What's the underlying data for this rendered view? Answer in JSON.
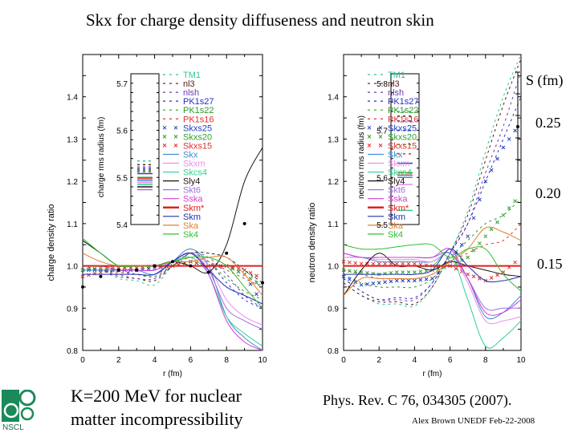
{
  "slide": {
    "title": "Skx for charge density diffuseness and neutron skin",
    "note_line1": "K=200 MeV for nuclear",
    "note_line2": "matter incompressibility",
    "reference": "Phys. Rev. C 76, 034305 (2007).",
    "author": "Alex Brown UNEDF Feb-22-2008",
    "logo_text": "NSCL",
    "skin_scale": {
      "label": "S (fm)",
      "ticks": [
        "0.25",
        "0.20",
        "0.15"
      ]
    }
  },
  "chart_data": [
    {
      "type": "line",
      "xlabel": "r (fm)",
      "ylabel": "charge density ratio",
      "xlim": [
        0,
        10
      ],
      "ylim": [
        0.8,
        1.5
      ],
      "xticks": [
        "0",
        "2",
        "4",
        "6",
        "8",
        "10"
      ],
      "yticks": [
        "0.8",
        "0.9",
        "1.0",
        "1.1",
        "1.2",
        "1.3",
        "1.4"
      ],
      "x": [
        0,
        1,
        2,
        3,
        4,
        5,
        6,
        7,
        8,
        9,
        10
      ],
      "legend_placement": "top-right",
      "inset": {
        "ylabel": "charge rms radius (fm)",
        "yticks": [
          "5.4",
          "5.5",
          "5.6",
          "5.7"
        ],
        "ylim": [
          5.4,
          5.72
        ],
        "values": [
          5.535,
          5.527,
          5.522,
          5.518,
          5.515,
          5.512,
          5.508,
          5.5,
          5.497,
          5.493,
          5.489,
          5.485,
          5.48,
          5.474
        ]
      },
      "series": [
        {
          "name": "TM1",
          "color": "#2ec4a0",
          "style": "dashed",
          "values": [
            0.99,
            0.99,
            0.97,
            0.965,
            0.955,
            1.0,
            1.03,
            1.03,
            1.02,
            0.99,
            0.95
          ]
        },
        {
          "name": "nl3",
          "color": "#5a1a10",
          "style": "dashed",
          "values": [
            0.99,
            0.99,
            0.975,
            0.97,
            0.965,
            1.0,
            1.03,
            1.03,
            1.02,
            0.99,
            0.96
          ]
        },
        {
          "name": "nlsh",
          "color": "#6a3ab0",
          "style": "dashed",
          "values": [
            1.0,
            0.99,
            0.98,
            0.97,
            0.97,
            1.0,
            1.03,
            1.02,
            0.98,
            0.93,
            0.9
          ]
        },
        {
          "name": "PK1s27",
          "color": "#2a2ad0",
          "style": "dashed",
          "values": [
            1.0,
            0.99,
            0.99,
            0.98,
            0.975,
            1.0,
            1.03,
            1.01,
            0.96,
            0.92,
            0.9
          ]
        },
        {
          "name": "PK1s22",
          "color": "#2a9a2a",
          "style": "dashed",
          "values": [
            1.0,
            0.99,
            0.985,
            0.98,
            0.975,
            1.0,
            1.03,
            1.01,
            0.97,
            0.94,
            0.92
          ]
        },
        {
          "name": "PK1s16",
          "color": "#e03030",
          "style": "dashed",
          "values": [
            1.0,
            0.99,
            0.985,
            0.98,
            0.98,
            1.0,
            1.02,
            1.01,
            0.99,
            0.97,
            0.95
          ]
        },
        {
          "name": "Skxs25",
          "color": "#2040c0",
          "style": "cross",
          "values": [
            0.99,
            0.99,
            0.99,
            0.99,
            0.995,
            1.0,
            1.01,
            1.0,
            1.0,
            0.98,
            0.91
          ]
        },
        {
          "name": "Skxs20",
          "color": "#30a030",
          "style": "cross",
          "values": [
            0.99,
            0.995,
            0.995,
            0.995,
            1.0,
            1.0,
            1.01,
            1.0,
            1.0,
            0.98,
            0.95
          ]
        },
        {
          "name": "Skxs15",
          "color": "#e03030",
          "style": "cross",
          "values": [
            0.975,
            0.985,
            0.995,
            0.995,
            1.0,
            1.0,
            1.01,
            1.0,
            1.0,
            0.99,
            0.97
          ]
        },
        {
          "name": "Skx",
          "color": "#3a8ad8",
          "style": "solid",
          "values": [
            0.99,
            0.99,
            0.99,
            0.99,
            0.98,
            1.01,
            1.04,
            1.0,
            0.88,
            0.83,
            0.8
          ]
        },
        {
          "name": "Skxm",
          "color": "#e890e8",
          "style": "solid",
          "values": [
            1.0,
            1.0,
            0.99,
            0.99,
            0.99,
            1.01,
            1.03,
            1.0,
            0.92,
            0.88,
            0.86
          ]
        },
        {
          "name": "Skcs4",
          "color": "#30d090",
          "style": "solid",
          "values": [
            1.06,
            1.03,
            1.0,
            1.0,
            1.0,
            1.01,
            1.02,
            0.98,
            0.88,
            0.84,
            0.81
          ]
        },
        {
          "name": "Sly4",
          "color": "#201010",
          "style": "solid",
          "values": [
            1.06,
            1.03,
            1.0,
            1.0,
            1.0,
            1.01,
            1.0,
            0.985,
            1.05,
            1.2,
            1.28
          ]
        },
        {
          "name": "Skt6",
          "color": "#a070e0",
          "style": "solid",
          "values": [
            1.0,
            1.0,
            0.99,
            0.99,
            0.99,
            1.01,
            1.03,
            0.99,
            0.9,
            0.87,
            0.85
          ]
        },
        {
          "name": "Sska",
          "color": "#d040d0",
          "style": "solid",
          "values": [
            1.0,
            1.0,
            0.99,
            0.99,
            0.99,
            1.01,
            1.03,
            0.98,
            0.87,
            0.82,
            0.79
          ]
        },
        {
          "name": "Skm*",
          "color": "#e02020",
          "style": "thick",
          "values": [
            1.0,
            1.0,
            1.0,
            1.0,
            1.0,
            1.0,
            1.0,
            1.0,
            1.0,
            1.0,
            1.0
          ]
        },
        {
          "name": "Skm",
          "color": "#2030b0",
          "style": "solid",
          "values": [
            0.98,
            0.98,
            0.98,
            0.98,
            0.98,
            1.01,
            1.03,
            0.99,
            0.95,
            0.93,
            0.91
          ]
        },
        {
          "name": "Ska",
          "color": "#e08030",
          "style": "solid",
          "values": [
            1.03,
            1.01,
            1.0,
            1.0,
            1.0,
            1.01,
            1.01,
            1.02,
            1.02,
            0.98,
            0.93
          ]
        },
        {
          "name": "Sk4",
          "color": "#30c030",
          "style": "solid",
          "values": [
            1.065,
            1.03,
            1.0,
            1.0,
            1.0,
            1.01,
            1.02,
            1.02,
            1.0,
            0.95,
            0.9
          ]
        },
        {
          "color": "#000000",
          "style": "dots",
          "values": [
            0.95,
            0.975,
            0.99,
            0.99,
            1.0,
            1.01,
            1.0,
            0.985,
            1.03,
            1.1,
            0.96
          ]
        }
      ]
    },
    {
      "type": "line",
      "xlabel": "r (fm)",
      "ylabel": "neutron density ratio",
      "xlim": [
        0,
        10
      ],
      "ylim": [
        0.8,
        1.5
      ],
      "xticks": [
        "0",
        "2",
        "4",
        "6",
        "8",
        "10"
      ],
      "yticks": [
        "0.8",
        "0.9",
        "1.0",
        "1.1",
        "1.2",
        "1.3",
        "1.4"
      ],
      "x": [
        0,
        1,
        2,
        3,
        4,
        5,
        6,
        7,
        8,
        9,
        10
      ],
      "legend_placement": "top-right",
      "inset": {
        "ylabel": "neutron rms radius (fm)",
        "yticks": [
          "5.5",
          "5.6",
          "5.7",
          "5.8"
        ],
        "ylim": [
          5.5,
          5.82
        ],
        "values": [
          5.74,
          5.73,
          5.72,
          5.7,
          5.67,
          5.65,
          5.63,
          5.61,
          5.605,
          5.6,
          5.585,
          5.53
        ]
      },
      "series": [
        {
          "name": "TM1",
          "color": "#2ec4a0",
          "style": "dashed",
          "values": [
            0.96,
            0.93,
            0.91,
            0.91,
            0.905,
            0.95,
            1.03,
            1.13,
            1.27,
            1.4,
            1.5
          ]
        },
        {
          "name": "nl3",
          "color": "#5a1a10",
          "style": "dashed",
          "values": [
            0.96,
            0.93,
            0.915,
            0.915,
            0.91,
            0.95,
            1.03,
            1.12,
            1.25,
            1.38,
            1.49
          ]
        },
        {
          "name": "nlsh",
          "color": "#6a3ab0",
          "style": "dashed",
          "values": [
            0.97,
            0.94,
            0.92,
            0.92,
            0.92,
            0.96,
            1.03,
            1.1,
            1.22,
            1.33,
            1.46
          ]
        },
        {
          "name": "PK1s27",
          "color": "#2a2ad0",
          "style": "dashed",
          "values": [
            0.97,
            0.94,
            0.92,
            0.925,
            0.925,
            0.96,
            1.03,
            1.1,
            1.2,
            1.3,
            1.4
          ]
        },
        {
          "name": "PK1s22",
          "color": "#2a9a2a",
          "style": "dashed",
          "values": [
            0.98,
            0.96,
            0.95,
            0.95,
            0.95,
            0.97,
            1.02,
            1.06,
            1.1,
            1.12,
            1.16
          ]
        },
        {
          "name": "PK1s16",
          "color": "#e03030",
          "style": "dashed",
          "values": [
            0.99,
            0.98,
            0.97,
            0.97,
            0.97,
            0.98,
            1.01,
            1.03,
            1.05,
            1.06,
            1.1
          ]
        },
        {
          "name": "Skxs25",
          "color": "#2040c0",
          "style": "cross",
          "values": [
            0.975,
            0.955,
            0.96,
            0.965,
            0.965,
            0.97,
            1.01,
            1.07,
            1.2,
            1.28,
            1.34
          ]
        },
        {
          "name": "Skxs20",
          "color": "#30a030",
          "style": "cross",
          "values": [
            0.99,
            0.985,
            0.98,
            0.985,
            0.985,
            0.99,
            1.0,
            1.02,
            1.07,
            1.12,
            1.17
          ]
        },
        {
          "name": "Skxs15",
          "color": "#e03030",
          "style": "cross",
          "values": [
            1.01,
            1.005,
            1.005,
            1.005,
            1.005,
            1.0,
            1.0,
            0.98,
            0.965,
            0.985,
            1.02
          ]
        },
        {
          "name": "Skx",
          "color": "#3a8ad8",
          "style": "solid",
          "values": [
            1.02,
            1.02,
            1.01,
            1.01,
            1.01,
            1.01,
            1.03,
            0.97,
            0.88,
            0.89,
            0.93
          ]
        },
        {
          "name": "Skxm",
          "color": "#e890e8",
          "style": "solid",
          "values": [
            1.02,
            1.02,
            1.015,
            1.015,
            1.015,
            1.01,
            1.03,
            0.96,
            0.87,
            0.87,
            0.88
          ]
        },
        {
          "name": "Skcs4",
          "color": "#30d090",
          "style": "solid",
          "values": [
            1.0,
            1.0,
            1.0,
            1.0,
            1.0,
            1.0,
            1.03,
            0.92,
            0.81,
            0.83,
            0.87
          ]
        },
        {
          "name": "Sly4",
          "color": "#201010",
          "style": "solid",
          "values": [
            0.93,
            0.99,
            1.03,
            1.0,
            1.0,
            0.99,
            1.01,
            1.0,
            0.99,
            0.98,
            0.975
          ]
        },
        {
          "name": "Skt6",
          "color": "#a070e0",
          "style": "solid",
          "values": [
            1.03,
            1.02,
            1.02,
            1.02,
            1.02,
            1.02,
            1.03,
            0.97,
            0.9,
            0.9,
            0.9
          ]
        },
        {
          "name": "Sska",
          "color": "#d040d0",
          "style": "solid",
          "values": [
            1.03,
            1.02,
            1.02,
            1.02,
            1.02,
            1.02,
            1.04,
            0.97,
            0.89,
            0.89,
            0.92
          ]
        },
        {
          "name": "Skm*",
          "color": "#e02020",
          "style": "thick",
          "values": [
            1.0,
            1.0,
            1.0,
            1.0,
            1.0,
            1.0,
            1.0,
            1.0,
            1.0,
            1.0,
            1.0
          ]
        },
        {
          "name": "Skm",
          "color": "#2030b0",
          "style": "solid",
          "values": [
            0.98,
            0.98,
            0.98,
            0.98,
            0.98,
            0.99,
            1.04,
            1.0,
            0.965,
            0.965,
            0.975
          ]
        },
        {
          "name": "Ska",
          "color": "#e08030",
          "style": "solid",
          "values": [
            0.93,
            0.97,
            0.97,
            0.97,
            0.97,
            0.98,
            1.01,
            1.04,
            1.09,
            1.08,
            1.06
          ]
        },
        {
          "name": "Sk4",
          "color": "#30c030",
          "style": "solid",
          "values": [
            1.05,
            1.04,
            1.04,
            1.045,
            1.05,
            1.05,
            1.02,
            1.04,
            1.04,
            0.98,
            0.94
          ]
        }
      ]
    }
  ]
}
